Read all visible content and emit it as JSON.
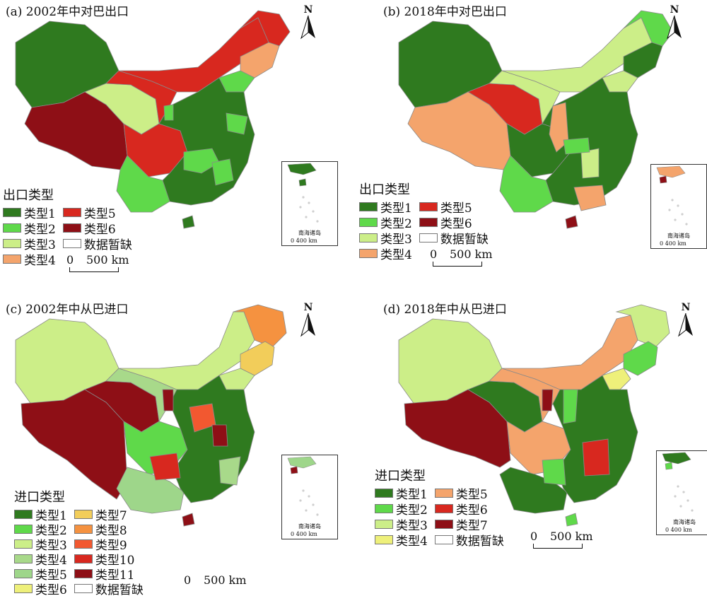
{
  "north_label": "N",
  "inset": {
    "label": "南海诸岛",
    "scale": "0   400 km"
  },
  "scale": {
    "zero": "0",
    "dist": "500 km"
  },
  "no_data_color": "#ffffff",
  "panels": {
    "a": {
      "title": "(a) 2002年中对巴出口",
      "legend_title": "出口类型",
      "legend": [
        {
          "label": "类型1",
          "color": "#2f7a1f"
        },
        {
          "label": "类型2",
          "color": "#5fd94a"
        },
        {
          "label": "类型3",
          "color": "#ccee88"
        },
        {
          "label": "类型4",
          "color": "#f4a46c"
        },
        {
          "label": "类型5",
          "color": "#d8281f"
        },
        {
          "label": "类型6",
          "color": "#8e0f16"
        },
        {
          "label": "数据暂缺",
          "color": "#ffffff"
        }
      ]
    },
    "b": {
      "title": "(b) 2018年中对巴出口",
      "legend_title": "出口类型",
      "legend": [
        {
          "label": "类型1",
          "color": "#2f7a1f"
        },
        {
          "label": "类型2",
          "color": "#5fd94a"
        },
        {
          "label": "类型3",
          "color": "#ccee88"
        },
        {
          "label": "类型4",
          "color": "#f4a46c"
        },
        {
          "label": "类型5",
          "color": "#d8281f"
        },
        {
          "label": "类型6",
          "color": "#8e0f16"
        },
        {
          "label": "数据暂缺",
          "color": "#ffffff"
        }
      ]
    },
    "c": {
      "title": "(c) 2002年中从巴进口",
      "legend_title": "进口类型",
      "legend": [
        {
          "label": "类型1",
          "color": "#2f7a1f"
        },
        {
          "label": "类型2",
          "color": "#5fd94a"
        },
        {
          "label": "类型3",
          "color": "#ccee88"
        },
        {
          "label": "类型4",
          "color": "#a8d98a"
        },
        {
          "label": "类型5",
          "color": "#9ed68a"
        },
        {
          "label": "类型6",
          "color": "#eef07a"
        },
        {
          "label": "类型7",
          "color": "#f2cd5a"
        },
        {
          "label": "类型8",
          "color": "#f59240"
        },
        {
          "label": "类型9",
          "color": "#f25830"
        },
        {
          "label": "类型10",
          "color": "#d8281f"
        },
        {
          "label": "类型11",
          "color": "#8e0f16"
        },
        {
          "label": "数据暂缺",
          "color": "#ffffff"
        }
      ]
    },
    "d": {
      "title": "(d) 2018年中从巴进口",
      "legend_title": "进口类型",
      "legend": [
        {
          "label": "类型1",
          "color": "#2f7a1f"
        },
        {
          "label": "类型2",
          "color": "#5fd94a"
        },
        {
          "label": "类型3",
          "color": "#ccee88"
        },
        {
          "label": "类型4",
          "color": "#eef07a"
        },
        {
          "label": "类型5",
          "color": "#f4a46c"
        },
        {
          "label": "类型6",
          "color": "#d8281f"
        },
        {
          "label": "类型7",
          "color": "#8e0f16"
        },
        {
          "label": "数据暂缺",
          "color": "#ffffff"
        }
      ]
    }
  }
}
